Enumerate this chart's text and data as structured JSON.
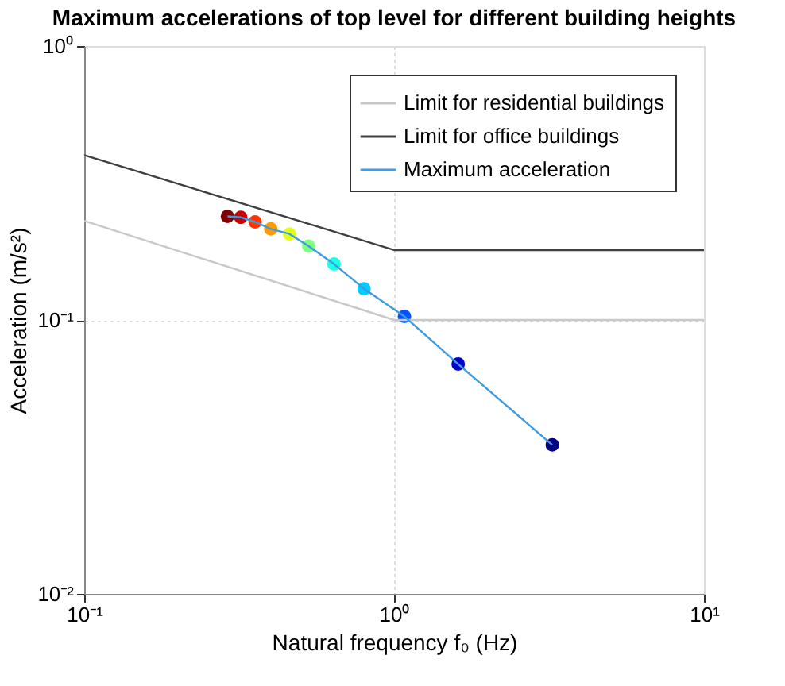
{
  "chart_data": {
    "type": "line",
    "title": "Maximum accelerations of top level for different building heights",
    "xlabel": "Natural frequency f₀ (Hz)",
    "ylabel": "Acceleration (m/s²)",
    "log": "xy",
    "xlim": [
      0.1,
      10
    ],
    "ylim": [
      0.01,
      1
    ],
    "xticks": [
      {
        "value": 0.1,
        "label": "10⁻¹"
      },
      {
        "value": 1,
        "label": "10⁰"
      },
      {
        "value": 10,
        "label": "10¹"
      }
    ],
    "yticks": [
      {
        "value": 0.01,
        "label": "10⁻²"
      },
      {
        "value": 0.1,
        "label": "10⁻¹"
      },
      {
        "value": 1,
        "label": "10⁰"
      }
    ],
    "grid": true,
    "legend": "top right",
    "series": [
      {
        "name": "Limit for residential buildings",
        "type": "line",
        "color": "#c8c8c8",
        "marker": "none",
        "x": [
          0.1,
          1,
          10
        ],
        "values": [
          0.23,
          0.1,
          0.1
        ]
      },
      {
        "name": "Limit for office buildings",
        "type": "line",
        "color": "#404040",
        "marker": "none",
        "x": [
          0.1,
          1,
          10
        ],
        "values": [
          0.4,
          0.18,
          0.18
        ]
      },
      {
        "name": "Maximum acceleration",
        "type": "line",
        "color": "#3d9be0",
        "marker": "none",
        "x": [
          0.29,
          0.32,
          0.356,
          0.4,
          0.46,
          0.53,
          0.64,
          0.8,
          1.08,
          1.61,
          3.24
        ],
        "values": [
          0.239,
          0.237,
          0.228,
          0.215,
          0.206,
          0.186,
          0.16,
          0.13,
          0.103,
          0.069,
          0.035
        ]
      },
      {
        "type": "scatter",
        "marker": "circle",
        "x": [
          0.29,
          0.32,
          0.356,
          0.4,
          0.46,
          0.53,
          0.64,
          0.8,
          1.08,
          1.61,
          3.24
        ],
        "values": [
          0.239,
          0.237,
          0.228,
          0.215,
          0.206,
          0.186,
          0.16,
          0.13,
          0.103,
          0.069,
          0.035
        ],
        "colors": [
          "#800000",
          "#cc0000",
          "#ff3300",
          "#ff9900",
          "#e6ff1a",
          "#80ff80",
          "#1affe6",
          "#00ccff",
          "#0055ff",
          "#0000cc",
          "#000080"
        ]
      }
    ]
  }
}
